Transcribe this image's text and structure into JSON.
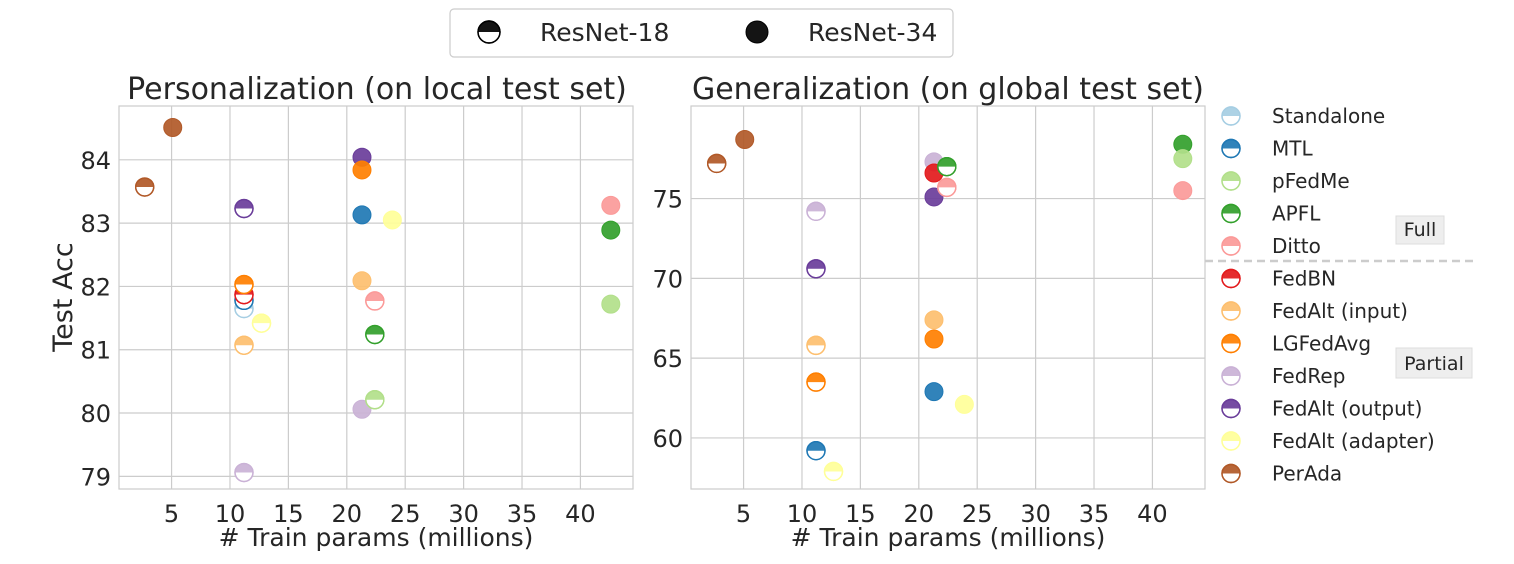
{
  "top_legend": {
    "items": [
      {
        "label": "ResNet-18",
        "marker": "half"
      },
      {
        "label": "ResNet-34",
        "marker": "full"
      }
    ]
  },
  "method_legend": {
    "items": [
      {
        "label": "Standalone",
        "color": "#a6cee3"
      },
      {
        "label": "MTL",
        "color": "#1f78b4"
      },
      {
        "label": "pFedMe",
        "color": "#b2df8a"
      },
      {
        "label": "APFL",
        "color": "#33a02c"
      },
      {
        "label": "Ditto",
        "color": "#fb9a99"
      },
      {
        "label": "FedBN",
        "color": "#e31a1c"
      },
      {
        "label": "FedAlt (input)",
        "color": "#fdbf6f"
      },
      {
        "label": "LGFedAvg",
        "color": "#ff7f00"
      },
      {
        "label": "FedRep",
        "color": "#cab2d6"
      },
      {
        "label": "FedAlt (output)",
        "color": "#6a3d9a"
      },
      {
        "label": "FedAlt (adapter)",
        "color": "#ffff99"
      },
      {
        "label": "PerAda",
        "color": "#b15928"
      }
    ],
    "group_labels": [
      "Full",
      "Partial"
    ]
  },
  "chart_data": [
    {
      "type": "scatter",
      "title": "Personalization (on local test set)",
      "xlabel": "# Train params (millions)",
      "ylabel": "Test Acc",
      "xlim": [
        0.5,
        44.5
      ],
      "ylim": [
        78.8,
        84.85
      ],
      "xticks": [
        5,
        10,
        15,
        20,
        25,
        30,
        35,
        40
      ],
      "yticks": [
        79,
        80,
        81,
        82,
        83,
        84
      ],
      "grid": true,
      "points": [
        {
          "method": "Standalone",
          "model": "ResNet-18",
          "x": 11.2,
          "y": 81.65
        },
        {
          "method": "MTL",
          "model": "ResNet-18",
          "x": 11.2,
          "y": 81.78
        },
        {
          "method": "FedBN",
          "model": "ResNet-18",
          "x": 11.2,
          "y": 81.87
        },
        {
          "method": "FedAlt (output)",
          "model": "ResNet-18",
          "x": 11.2,
          "y": 83.23
        },
        {
          "method": "LGFedAvg",
          "model": "ResNet-18",
          "x": 11.2,
          "y": 82.03
        },
        {
          "method": "FedAlt (input)",
          "model": "ResNet-18",
          "x": 11.2,
          "y": 81.07
        },
        {
          "method": "FedRep",
          "model": "ResNet-18",
          "x": 11.2,
          "y": 79.06
        },
        {
          "method": "FedAlt (adapter)",
          "model": "ResNet-18",
          "x": 12.7,
          "y": 81.42
        },
        {
          "method": "PerAda",
          "model": "ResNet-18",
          "x": 2.7,
          "y": 83.57
        },
        {
          "method": "PerAda",
          "model": "ResNet-34",
          "x": 5.1,
          "y": 84.51
        },
        {
          "method": "FedAlt (output)",
          "model": "ResNet-34",
          "x": 21.3,
          "y": 84.04
        },
        {
          "method": "LGFedAvg",
          "model": "ResNet-34",
          "x": 21.3,
          "y": 83.84
        },
        {
          "method": "MTL",
          "model": "ResNet-34",
          "x": 21.3,
          "y": 83.13
        },
        {
          "method": "FedAlt (input)",
          "model": "ResNet-34",
          "x": 21.3,
          "y": 82.09
        },
        {
          "method": "FedRep",
          "model": "ResNet-34",
          "x": 21.3,
          "y": 80.06
        },
        {
          "method": "Ditto",
          "model": "ResNet-18",
          "x": 22.4,
          "y": 81.77
        },
        {
          "method": "APFL",
          "model": "ResNet-18",
          "x": 22.4,
          "y": 81.24
        },
        {
          "method": "pFedMe",
          "model": "ResNet-18",
          "x": 22.4,
          "y": 80.21
        },
        {
          "method": "FedAlt (adapter)",
          "model": "ResNet-34",
          "x": 23.9,
          "y": 83.05
        },
        {
          "method": "Ditto",
          "model": "ResNet-34",
          "x": 42.6,
          "y": 83.28
        },
        {
          "method": "APFL",
          "model": "ResNet-34",
          "x": 42.6,
          "y": 82.89
        },
        {
          "method": "pFedMe",
          "model": "ResNet-34",
          "x": 42.6,
          "y": 81.72
        }
      ]
    },
    {
      "type": "scatter",
      "title": "Generalization (on global test set)",
      "xlabel": "# Train params (millions)",
      "ylabel": "",
      "xlim": [
        0.5,
        44.5
      ],
      "ylim": [
        56.8,
        80.8
      ],
      "xticks": [
        5,
        10,
        15,
        20,
        25,
        30,
        35,
        40
      ],
      "yticks": [
        60,
        65,
        70,
        75
      ],
      "grid": true,
      "points": [
        {
          "method": "PerAda",
          "model": "ResNet-18",
          "x": 2.7,
          "y": 77.2
        },
        {
          "method": "PerAda",
          "model": "ResNet-34",
          "x": 5.1,
          "y": 78.7
        },
        {
          "method": "FedRep",
          "model": "ResNet-18",
          "x": 11.2,
          "y": 74.2
        },
        {
          "method": "FedAlt (output)",
          "model": "ResNet-18",
          "x": 11.2,
          "y": 70.6
        },
        {
          "method": "FedAlt (input)",
          "model": "ResNet-18",
          "x": 11.2,
          "y": 65.8
        },
        {
          "method": "LGFedAvg",
          "model": "ResNet-18",
          "x": 11.2,
          "y": 63.5
        },
        {
          "method": "MTL",
          "model": "ResNet-18",
          "x": 11.2,
          "y": 59.2
        },
        {
          "method": "FedAlt (adapter)",
          "model": "ResNet-18",
          "x": 12.7,
          "y": 57.9
        },
        {
          "method": "FedRep",
          "model": "ResNet-34",
          "x": 21.3,
          "y": 77.3
        },
        {
          "method": "FedBN",
          "model": "ResNet-34",
          "x": 21.3,
          "y": 76.6
        },
        {
          "method": "FedAlt (output)",
          "model": "ResNet-34",
          "x": 21.3,
          "y": 75.1
        },
        {
          "method": "FedAlt (input)",
          "model": "ResNet-34",
          "x": 21.3,
          "y": 67.4
        },
        {
          "method": "LGFedAvg",
          "model": "ResNet-34",
          "x": 21.3,
          "y": 66.2
        },
        {
          "method": "MTL",
          "model": "ResNet-34",
          "x": 21.3,
          "y": 62.9
        },
        {
          "method": "APFL",
          "model": "ResNet-18",
          "x": 22.4,
          "y": 77.0
        },
        {
          "method": "Ditto",
          "model": "ResNet-18",
          "x": 22.4,
          "y": 75.7
        },
        {
          "method": "FedAlt (adapter)",
          "model": "ResNet-34",
          "x": 23.9,
          "y": 62.1
        },
        {
          "method": "APFL",
          "model": "ResNet-34",
          "x": 42.6,
          "y": 78.4
        },
        {
          "method": "pFedMe",
          "model": "ResNet-34",
          "x": 42.6,
          "y": 77.5
        },
        {
          "method": "Ditto",
          "model": "ResNet-34",
          "x": 42.6,
          "y": 75.5
        }
      ]
    }
  ]
}
